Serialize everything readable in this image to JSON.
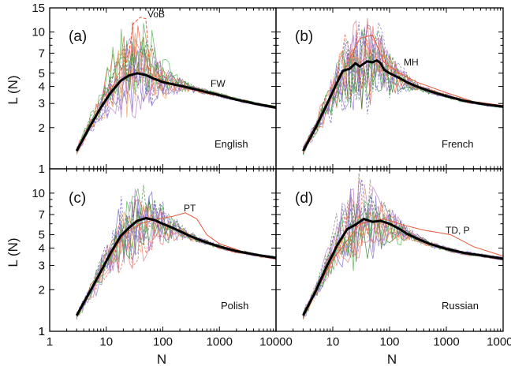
{
  "chart_data": {
    "type": "line",
    "layout": "2x2 panels",
    "xscale": "log",
    "yscale": "log",
    "xlim": [
      1,
      10000
    ],
    "ylim": [
      1,
      15
    ],
    "xticks": [
      1,
      10,
      100,
      1000,
      10000
    ],
    "xtick_labels": [
      "1",
      "10",
      "100",
      "1000",
      "10000"
    ],
    "yticks": [
      1,
      2,
      3,
      4,
      5,
      7,
      10,
      15
    ],
    "ytick_labels": [
      "1",
      "2",
      "3",
      "4",
      "5",
      "7",
      "10",
      "15"
    ],
    "xlabel": "N",
    "ylabel": "L (N)",
    "grid": false,
    "colors": {
      "mean": "#000000",
      "thin": [
        "#7b68c9",
        "#b07cc6",
        "#e8573a",
        "#f0a35a",
        "#4caf50",
        "#2e7d32",
        "#8d6e63",
        "#9575cd",
        "#e57373",
        "#6a5acd"
      ]
    },
    "panels": [
      {
        "label": "(a)",
        "language": "English",
        "annotations": [
          {
            "text": "VoB",
            "x": 55,
            "y": 12
          },
          {
            "text": "FW",
            "x": 300,
            "y": 5.2
          }
        ],
        "mean_curve": {
          "x": [
            3,
            5,
            8,
            12,
            18,
            25,
            35,
            50,
            70,
            100,
            150,
            200,
            300,
            500,
            1000,
            2000,
            5000,
            10000
          ],
          "y": [
            1.35,
            2.0,
            2.8,
            3.6,
            4.4,
            4.8,
            5.0,
            4.85,
            4.55,
            4.3,
            4.15,
            4.05,
            3.9,
            3.7,
            3.45,
            3.2,
            2.95,
            2.8
          ]
        },
        "highlight": {
          "name": "VoB",
          "x": [
            3,
            8,
            15,
            25,
            30,
            40,
            50,
            60,
            80,
            150,
            400,
            1000,
            10000
          ],
          "y": [
            1.4,
            2.8,
            4.5,
            7,
            11.5,
            12.8,
            12.5,
            5.0,
            4.6,
            4.1,
            3.7,
            3.4,
            2.75
          ]
        }
      },
      {
        "label": "(b)",
        "language": "French",
        "annotations": [
          {
            "text": "MH",
            "x": 110,
            "y": 7.6
          }
        ],
        "mean_curve": {
          "x": [
            3,
            5,
            8,
            12,
            15,
            20,
            25,
            30,
            40,
            50,
            60,
            70,
            80,
            100,
            150,
            200,
            300,
            500,
            1000,
            2000,
            5000,
            10000
          ],
          "y": [
            1.35,
            2.0,
            3.0,
            4.3,
            5.2,
            5.4,
            5.9,
            5.6,
            6.1,
            6.0,
            6.2,
            5.9,
            5.3,
            5.0,
            4.6,
            4.3,
            4.0,
            3.7,
            3.4,
            3.15,
            2.95,
            2.85
          ]
        },
        "highlight": {
          "name": "MH",
          "x": [
            3,
            8,
            15,
            30,
            50,
            80,
            150,
            300,
            1000,
            3000,
            10000
          ],
          "y": [
            1.4,
            3.0,
            5.0,
            9.0,
            9.5,
            6.0,
            5.0,
            4.3,
            3.6,
            3.1,
            2.9
          ]
        }
      },
      {
        "label": "(c)",
        "language": "Polish",
        "annotations": [
          {
            "text": "PT",
            "x": 400,
            "y": 8.2
          }
        ],
        "mean_curve": {
          "x": [
            3,
            5,
            8,
            12,
            18,
            25,
            35,
            50,
            70,
            100,
            150,
            200,
            300,
            500,
            1000,
            2000,
            5000,
            10000
          ],
          "y": [
            1.3,
            1.9,
            2.7,
            3.7,
            4.9,
            5.6,
            6.3,
            6.6,
            6.4,
            6.0,
            5.6,
            5.3,
            4.9,
            4.5,
            4.1,
            3.8,
            3.55,
            3.4
          ]
        },
        "highlight": {
          "name": "PT",
          "x": [
            3,
            8,
            20,
            40,
            80,
            150,
            250,
            400,
            600,
            1000,
            3000,
            10000
          ],
          "y": [
            1.3,
            2.7,
            5.0,
            6.0,
            6.5,
            6.8,
            7.2,
            6.5,
            5.0,
            4.3,
            3.7,
            3.4
          ]
        }
      },
      {
        "label": "(d)",
        "language": "Russian",
        "annotations": [
          {
            "text": "TD, P",
            "x": 1300,
            "y": 6.0
          }
        ],
        "mean_curve": {
          "x": [
            3,
            5,
            8,
            12,
            18,
            25,
            35,
            50,
            70,
            100,
            150,
            200,
            300,
            500,
            1000,
            2000,
            5000,
            10000
          ],
          "y": [
            1.3,
            1.95,
            3.0,
            4.2,
            5.5,
            5.9,
            6.5,
            6.2,
            6.3,
            6.0,
            5.5,
            5.1,
            4.7,
            4.3,
            3.95,
            3.7,
            3.5,
            3.35
          ]
        },
        "highlight": {
          "name": "TD, P",
          "x": [
            3,
            10,
            30,
            80,
            200,
            400,
            700,
            1200,
            3000,
            10000
          ],
          "y": [
            1.3,
            3.3,
            6.0,
            6.5,
            5.8,
            5.4,
            5.2,
            5.0,
            4.1,
            3.5
          ]
        }
      }
    ]
  }
}
